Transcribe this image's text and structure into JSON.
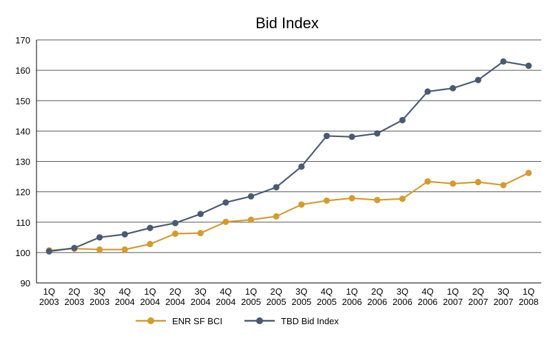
{
  "chart_data": {
    "type": "line",
    "title": "Bid Index",
    "xlabel": "",
    "ylabel": "",
    "ylim": [
      90,
      170
    ],
    "yticks": [
      90,
      100,
      110,
      120,
      130,
      140,
      150,
      160,
      170
    ],
    "grid": true,
    "legend_position": "bottom",
    "categories": [
      [
        "1Q",
        "2003"
      ],
      [
        "2Q",
        "2003"
      ],
      [
        "3Q",
        "2003"
      ],
      [
        "4Q",
        "2004"
      ],
      [
        "1Q",
        "2004"
      ],
      [
        "2Q",
        "2004"
      ],
      [
        "3Q",
        "2004"
      ],
      [
        "4Q",
        "2004"
      ],
      [
        "1Q",
        "2005"
      ],
      [
        "2Q",
        "2005"
      ],
      [
        "3Q",
        "2005"
      ],
      [
        "4Q",
        "2005"
      ],
      [
        "1Q",
        "2006"
      ],
      [
        "2Q",
        "2006"
      ],
      [
        "3Q",
        "2006"
      ],
      [
        "4Q",
        "2006"
      ],
      [
        "1Q",
        "2007"
      ],
      [
        "2Q",
        "2007"
      ],
      [
        "3Q",
        "2007"
      ],
      [
        "1Q",
        "2008"
      ]
    ],
    "series": [
      {
        "name": "ENR SF BCI",
        "color": "#d69a2d",
        "values": [
          100.7,
          101.3,
          101.0,
          101.0,
          102.8,
          106.2,
          106.4,
          110.1,
          110.8,
          111.9,
          115.8,
          117.1,
          117.9,
          117.3,
          117.7,
          123.4,
          122.7,
          123.2,
          122.2,
          126.2
        ]
      },
      {
        "name": "TBD Bid Index",
        "color": "#4a5a73",
        "values": [
          100.4,
          101.5,
          105.0,
          106.0,
          108.1,
          109.7,
          112.7,
          116.5,
          118.5,
          121.5,
          128.3,
          138.4,
          138.1,
          139.2,
          143.6,
          153.0,
          154.1,
          156.8,
          162.9,
          161.5
        ]
      }
    ]
  }
}
